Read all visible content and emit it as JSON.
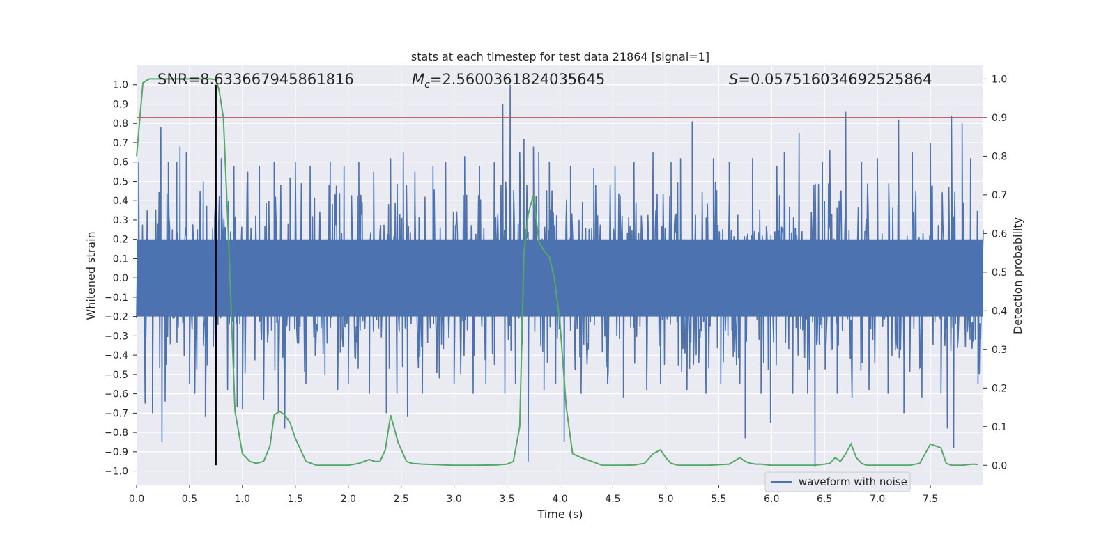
{
  "chart_data": {
    "type": "line",
    "title": "stats at each timestep for test data 21864 [signal=1]",
    "xlabel": "Time (s)",
    "ylabel": "Whitened strain",
    "y2label": "Detection probability",
    "xlim": [
      0.0,
      8.0
    ],
    "ylim": [
      -1.07,
      1.1
    ],
    "y2lim": [
      -0.05,
      1.035
    ],
    "x_ticks": [
      0.0,
      0.5,
      1.0,
      1.5,
      2.0,
      2.5,
      3.0,
      3.5,
      4.0,
      4.5,
      5.0,
      5.5,
      6.0,
      6.5,
      7.0,
      7.5
    ],
    "x_tick_labels": [
      "0.0",
      "0.5",
      "1.0",
      "1.5",
      "2.0",
      "2.5",
      "3.0",
      "3.5",
      "4.0",
      "4.5",
      "5.0",
      "5.5",
      "6.0",
      "6.5",
      "7.0",
      "7.5"
    ],
    "y_ticks": [
      -1.0,
      -0.9,
      -0.8,
      -0.7,
      -0.6,
      -0.5,
      -0.4,
      -0.3,
      -0.2,
      -0.1,
      0.0,
      0.1,
      0.2,
      0.3,
      0.4,
      0.5,
      0.6,
      0.7,
      0.8,
      0.9,
      1.0
    ],
    "y_tick_labels": [
      "−1.0",
      "−0.9",
      "−0.8",
      "−0.7",
      "−0.6",
      "−0.5",
      "−0.4",
      "−0.3",
      "−0.2",
      "−0.1",
      "0.0",
      "0.1",
      "0.2",
      "0.3",
      "0.4",
      "0.5",
      "0.6",
      "0.7",
      "0.8",
      "0.9",
      "1.0"
    ],
    "y2_ticks": [
      0.0,
      0.1,
      0.2,
      0.3,
      0.4,
      0.5,
      0.6,
      0.7,
      0.8,
      0.9,
      1.0
    ],
    "y2_tick_labels": [
      "0.0",
      "0.1",
      "0.2",
      "0.3",
      "0.4",
      "0.5",
      "0.6",
      "0.7",
      "0.8",
      "0.9",
      "1.0"
    ],
    "grid": true,
    "legend": {
      "placement": "lower-right",
      "entries": [
        "waveform with noise"
      ]
    },
    "annotations": {
      "snr": {
        "label": "SNR",
        "value": "8.633667945861816"
      },
      "mc": {
        "symbol": "M",
        "subscript": "c",
        "value": "2.5600361824035645"
      },
      "s": {
        "symbol": "S",
        "value": "0.057516034692525864"
      }
    },
    "threshold_line": {
      "y": 0.9,
      "axis": "right",
      "color": "#c44e52"
    },
    "marker_line": {
      "x": 0.75,
      "y_from": -0.97,
      "y_to": 1.0,
      "color": "#000000"
    },
    "series": [
      {
        "name": "waveform with noise",
        "axis": "left",
        "color": "#4c72b0",
        "noise_band": 0.28,
        "samples_per_second": 160,
        "spikes": [
          [
            0.02,
            0.6
          ],
          [
            0.08,
            -0.65
          ],
          [
            0.15,
            -0.7
          ],
          [
            0.23,
            0.78
          ],
          [
            0.24,
            -0.85
          ],
          [
            0.27,
            -0.64
          ],
          [
            0.3,
            0.6
          ],
          [
            0.38,
            0.6
          ],
          [
            0.41,
            0.68
          ],
          [
            0.47,
            0.65
          ],
          [
            0.5,
            -0.55
          ],
          [
            0.55,
            -0.6
          ],
          [
            0.63,
            0.5
          ],
          [
            0.65,
            -0.72
          ],
          [
            0.75,
            -0.55
          ],
          [
            0.8,
            0.62
          ],
          [
            0.86,
            -0.58
          ],
          [
            0.92,
            0.58
          ],
          [
            0.95,
            -0.67
          ],
          [
            1.0,
            -0.68
          ],
          [
            1.05,
            0.55
          ],
          [
            1.16,
            0.58
          ],
          [
            1.2,
            -0.63
          ],
          [
            1.3,
            0.6
          ],
          [
            1.34,
            -0.7
          ],
          [
            1.4,
            -0.78
          ],
          [
            1.45,
            0.52
          ],
          [
            1.5,
            0.6
          ],
          [
            1.6,
            -0.55
          ],
          [
            1.64,
            0.58
          ],
          [
            1.78,
            -0.5
          ],
          [
            1.83,
            0.6
          ],
          [
            1.9,
            -0.58
          ],
          [
            1.96,
            0.58
          ],
          [
            2.0,
            -0.55
          ],
          [
            2.1,
            0.6
          ],
          [
            2.2,
            -0.6
          ],
          [
            2.24,
            0.55
          ],
          [
            2.36,
            -0.7
          ],
          [
            2.4,
            0.62
          ],
          [
            2.46,
            -0.6
          ],
          [
            2.52,
            0.65
          ],
          [
            2.56,
            -0.72
          ],
          [
            2.63,
            0.55
          ],
          [
            2.7,
            -0.6
          ],
          [
            2.8,
            0.58
          ],
          [
            2.86,
            -0.52
          ],
          [
            2.92,
            0.6
          ],
          [
            3.0,
            -0.55
          ],
          [
            3.1,
            0.63
          ],
          [
            3.18,
            -0.6
          ],
          [
            3.24,
            0.58
          ],
          [
            3.3,
            -0.55
          ],
          [
            3.38,
            0.6
          ],
          [
            3.46,
            0.9
          ],
          [
            3.48,
            -0.6
          ],
          [
            3.53,
            1.0
          ],
          [
            3.58,
            -0.55
          ],
          [
            3.62,
            0.65
          ],
          [
            3.66,
            0.72
          ],
          [
            3.7,
            -0.95
          ],
          [
            3.75,
            0.68
          ],
          [
            3.8,
            0.65
          ],
          [
            3.85,
            -0.58
          ],
          [
            3.9,
            0.6
          ],
          [
            3.96,
            -0.55
          ],
          [
            4.04,
            -0.85
          ],
          [
            4.1,
            0.58
          ],
          [
            4.2,
            -0.6
          ],
          [
            4.32,
            0.57
          ],
          [
            4.45,
            -0.55
          ],
          [
            4.52,
            0.58
          ],
          [
            4.6,
            -0.62
          ],
          [
            4.7,
            0.6
          ],
          [
            4.82,
            -0.58
          ],
          [
            4.88,
            0.65
          ],
          [
            4.95,
            -0.55
          ],
          [
            5.05,
            0.6
          ],
          [
            5.14,
            0.62
          ],
          [
            5.2,
            -0.58
          ],
          [
            5.25,
            0.81
          ],
          [
            5.38,
            -0.6
          ],
          [
            5.45,
            0.62
          ],
          [
            5.52,
            -0.55
          ],
          [
            5.6,
            0.6
          ],
          [
            5.7,
            -0.55
          ],
          [
            5.75,
            -0.83
          ],
          [
            5.82,
            0.62
          ],
          [
            5.9,
            -0.6
          ],
          [
            5.99,
            -0.75
          ],
          [
            6.05,
            0.58
          ],
          [
            6.12,
            0.65
          ],
          [
            6.2,
            -0.6
          ],
          [
            6.26,
            0.75
          ],
          [
            6.34,
            -0.6
          ],
          [
            6.41,
            -0.98
          ],
          [
            6.48,
            0.6
          ],
          [
            6.55,
            0.66
          ],
          [
            6.62,
            -0.6
          ],
          [
            6.7,
            0.86
          ],
          [
            6.76,
            -0.62
          ],
          [
            6.85,
            0.6
          ],
          [
            6.92,
            -0.58
          ],
          [
            7.0,
            0.62
          ],
          [
            7.1,
            -0.6
          ],
          [
            7.2,
            0.82
          ],
          [
            7.25,
            -0.7
          ],
          [
            7.33,
            0.65
          ],
          [
            7.42,
            -0.62
          ],
          [
            7.5,
            0.7
          ],
          [
            7.6,
            -0.6
          ],
          [
            7.66,
            -0.78
          ],
          [
            7.7,
            0.84
          ],
          [
            7.72,
            -0.88
          ],
          [
            7.8,
            0.8
          ],
          [
            7.88,
            0.62
          ],
          [
            7.95,
            -0.55
          ]
        ]
      },
      {
        "name": "detection probability",
        "axis": "right",
        "color": "#55a868",
        "x": [
          0.0,
          0.06,
          0.12,
          0.2,
          0.3,
          0.4,
          0.5,
          0.6,
          0.7,
          0.75,
          0.78,
          0.82,
          0.87,
          0.93,
          1.0,
          1.07,
          1.13,
          1.2,
          1.26,
          1.3,
          1.35,
          1.4,
          1.45,
          1.5,
          1.6,
          1.7,
          1.9,
          2.0,
          2.1,
          2.2,
          2.25,
          2.3,
          2.35,
          2.4,
          2.43,
          2.47,
          2.55,
          2.6,
          2.7,
          2.8,
          2.9,
          3.0,
          3.2,
          3.4,
          3.5,
          3.56,
          3.62,
          3.66,
          3.7,
          3.75,
          3.8,
          3.85,
          3.9,
          3.95,
          4.0,
          4.06,
          4.12,
          4.2,
          4.3,
          4.4,
          4.5,
          4.6,
          4.7,
          4.8,
          4.88,
          4.95,
          5.0,
          5.05,
          5.12,
          5.2,
          5.4,
          5.6,
          5.7,
          5.75,
          5.8,
          5.85,
          5.9,
          6.0,
          6.1,
          6.2,
          6.3,
          6.4,
          6.5,
          6.55,
          6.6,
          6.65,
          6.7,
          6.75,
          6.8,
          6.85,
          6.9,
          7.0,
          7.1,
          7.2,
          7.3,
          7.4,
          7.5,
          7.6,
          7.65,
          7.7,
          7.75,
          7.8,
          7.9,
          7.95
        ],
        "values": [
          0.8,
          0.99,
          1.0,
          1.0,
          1.0,
          1.0,
          1.0,
          1.0,
          1.0,
          0.998,
          0.97,
          0.9,
          0.58,
          0.14,
          0.03,
          0.01,
          0.005,
          0.01,
          0.05,
          0.13,
          0.14,
          0.13,
          0.11,
          0.07,
          0.01,
          0.0,
          0.0,
          0.0,
          0.005,
          0.015,
          0.01,
          0.01,
          0.04,
          0.13,
          0.1,
          0.06,
          0.01,
          0.005,
          0.003,
          0.002,
          0.001,
          0.0,
          0.0,
          0.001,
          0.003,
          0.01,
          0.1,
          0.55,
          0.65,
          0.7,
          0.58,
          0.555,
          0.54,
          0.48,
          0.37,
          0.15,
          0.03,
          0.02,
          0.01,
          0.0,
          0.0,
          0.0,
          0.001,
          0.005,
          0.03,
          0.04,
          0.02,
          0.005,
          0.0,
          0.0,
          0.0,
          0.003,
          0.02,
          0.01,
          0.005,
          0.003,
          0.003,
          0.0,
          0.0,
          0.0,
          0.0,
          0.0,
          0.003,
          0.005,
          0.02,
          0.01,
          0.03,
          0.055,
          0.02,
          0.005,
          0.0,
          0.0,
          0.0,
          0.0,
          0.0,
          0.005,
          0.055,
          0.045,
          0.005,
          0.0,
          0.0,
          0.0,
          0.003,
          0.002
        ]
      }
    ]
  }
}
